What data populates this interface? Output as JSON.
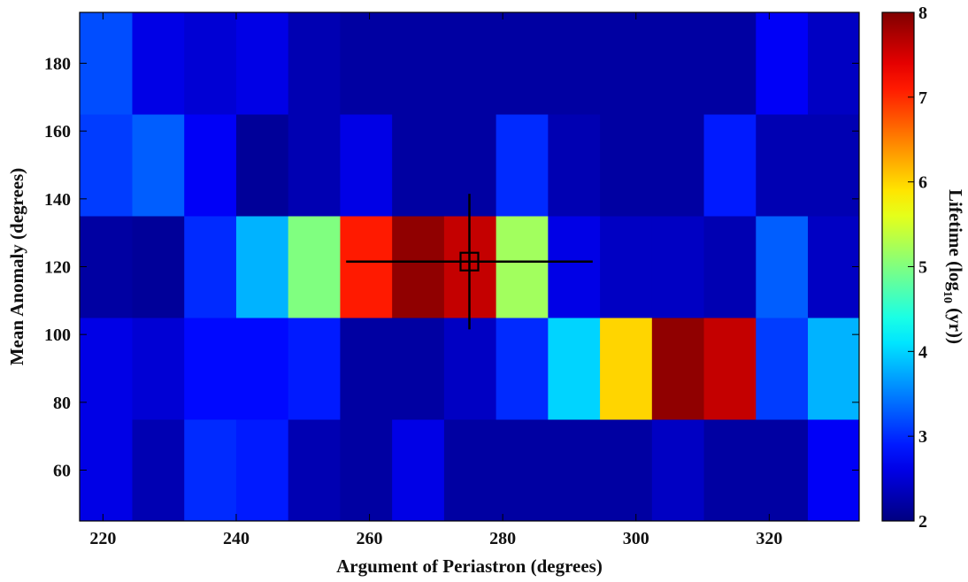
{
  "chart_data": {
    "type": "heatmap",
    "title": "",
    "xlabel": "Argument of Periastron (degrees)",
    "ylabel": "Mean Anomaly (degrees)",
    "colorbar_label": "Lifetime (log",
    "colorbar_label_sub": "10",
    "colorbar_label_end": " (yr))",
    "xlim": [
      216.5,
      333.5
    ],
    "ylim": [
      45,
      195
    ],
    "clim": [
      2,
      8
    ],
    "x_ticks": [
      220,
      240,
      260,
      280,
      300,
      320
    ],
    "y_ticks": [
      60,
      80,
      100,
      120,
      140,
      160,
      180
    ],
    "c_ticks": [
      2,
      3,
      4,
      5,
      6,
      7,
      8
    ],
    "x_centers": [
      220.5,
      228.3,
      236.1,
      243.9,
      251.7,
      259.5,
      267.3,
      275.1,
      282.9,
      290.7,
      298.5,
      306.3,
      314.1,
      321.9,
      329.7
    ],
    "y_centers": [
      60,
      90,
      120,
      150,
      180
    ],
    "values": [
      [
        2.6,
        2.3,
        3.0,
        2.9,
        2.3,
        2.2,
        2.6,
        2.2,
        2.2,
        2.2,
        2.2,
        2.4,
        2.2,
        2.2,
        2.7
      ],
      [
        2.6,
        2.5,
        2.8,
        2.8,
        2.9,
        2.2,
        2.2,
        2.4,
        3.0,
        4.0,
        6.0,
        7.9,
        7.6,
        3.1,
        3.8
      ],
      [
        2.2,
        2.15,
        3.0,
        3.8,
        5.0,
        7.1,
        7.9,
        7.6,
        5.2,
        2.6,
        2.4,
        2.4,
        2.3,
        3.3,
        2.4
      ],
      [
        3.1,
        3.3,
        2.7,
        2.15,
        2.3,
        2.6,
        2.2,
        2.2,
        3.0,
        2.3,
        2.2,
        2.2,
        2.9,
        2.3,
        2.3
      ],
      [
        3.2,
        2.6,
        2.5,
        2.6,
        2.3,
        2.2,
        2.2,
        2.2,
        2.2,
        2.2,
        2.2,
        2.2,
        2.2,
        2.7,
        2.4
      ]
    ],
    "marker": {
      "x": 275,
      "y": 121.5,
      "x_err": [
        256.5,
        293.5
      ],
      "y_err": [
        101.5,
        141.5
      ]
    }
  }
}
